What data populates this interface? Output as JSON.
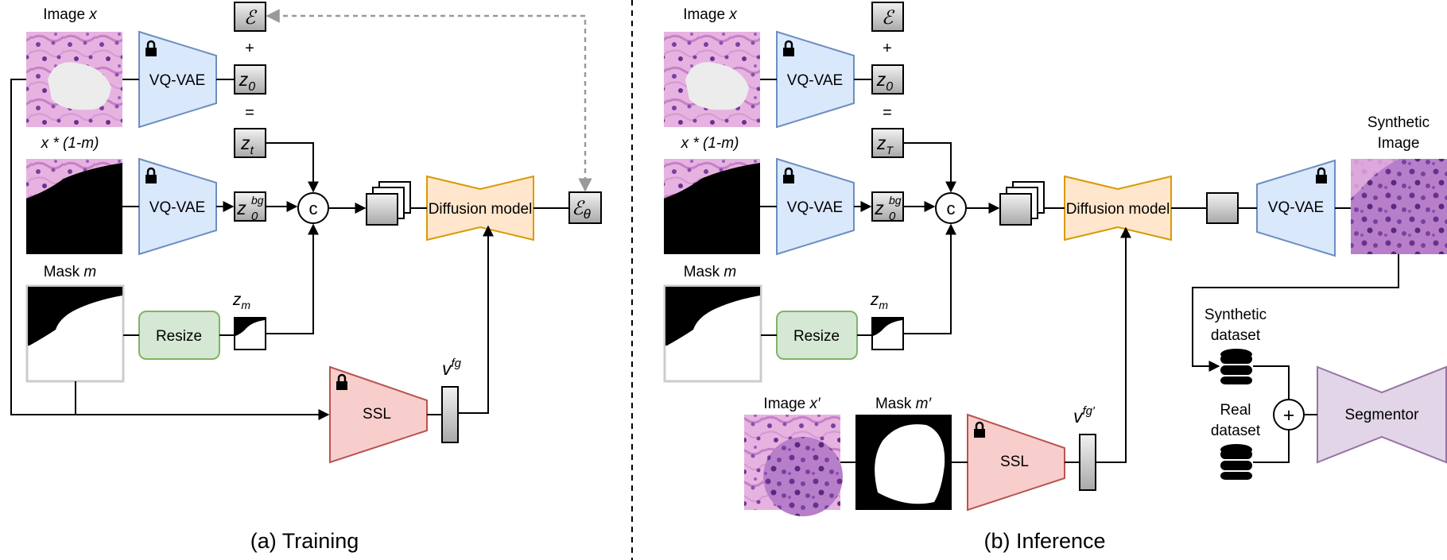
{
  "training": {
    "caption": "(a) Training",
    "image_label_prefix": "Image ",
    "image_label_var": "x",
    "masked_label": "x * (1-m)",
    "mask_label_prefix": "Mask ",
    "mask_label_var": "m",
    "encoder_top": "VQ-VAE",
    "encoder_bg": "VQ-VAE",
    "resize": "Resize",
    "ssl": "SSL",
    "diffusion": "Diffusion model",
    "epsilon": "ℰ",
    "plus": "+",
    "equals": "=",
    "z0": "z",
    "z0_sub": "0",
    "zt": "z",
    "zt_sub": "t",
    "zbg": "z",
    "zbg_sub": "0",
    "zbg_sup": "bg",
    "zm": "z",
    "zm_sub": "m",
    "concat": "c",
    "vfg": "v",
    "vfg_sup": "fg",
    "eps_theta": "ℰ",
    "eps_theta_sub": "θ"
  },
  "inference": {
    "caption": "(b) Inference",
    "image_label_prefix": "Image ",
    "image_label_var": "x",
    "masked_label": "x * (1-m)",
    "mask_label_prefix": "Mask ",
    "mask_label_var": "m",
    "encoder_top": "VQ-VAE",
    "encoder_bg": "VQ-VAE",
    "decoder": "VQ-VAE",
    "resize": "Resize",
    "ssl": "SSL",
    "diffusion": "Diffusion model",
    "epsilon": "ℰ",
    "plus": "+",
    "equals": "=",
    "z0": "z",
    "z0_sub": "0",
    "zT": "z",
    "zT_sub": "T",
    "zbg": "z",
    "zbg_sub": "0",
    "zbg_sup": "bg",
    "zm": "z",
    "zm_sub": "m",
    "concat": "c",
    "image2_label_prefix": "Image ",
    "image2_label_var": "x′",
    "mask2_label_prefix": "Mask ",
    "mask2_label_var": "m′",
    "vfg": "v",
    "vfg_sup": "fg′",
    "synthetic_image": [
      "Synthetic",
      "Image"
    ],
    "synthetic_dataset": [
      "Synthetic",
      "dataset"
    ],
    "real_dataset": [
      "Real",
      "dataset"
    ],
    "sum": "+",
    "segmentor": "Segmentor"
  },
  "colors": {
    "vqvae_fill": "#dae8fc",
    "vqvae_stroke": "#6c8ebf",
    "diffusion_fill": "#ffe6cc",
    "diffusion_stroke": "#d79b00",
    "ssl_fill": "#f8cecc",
    "ssl_stroke": "#b85450",
    "resize_fill": "#d5e8d4",
    "resize_stroke": "#82b366",
    "segmentor_fill": "#e1d5e7",
    "segmentor_stroke": "#9673a6",
    "tissue_pink": "#d99ad8",
    "tissue_purple": "#8a4fb0"
  }
}
